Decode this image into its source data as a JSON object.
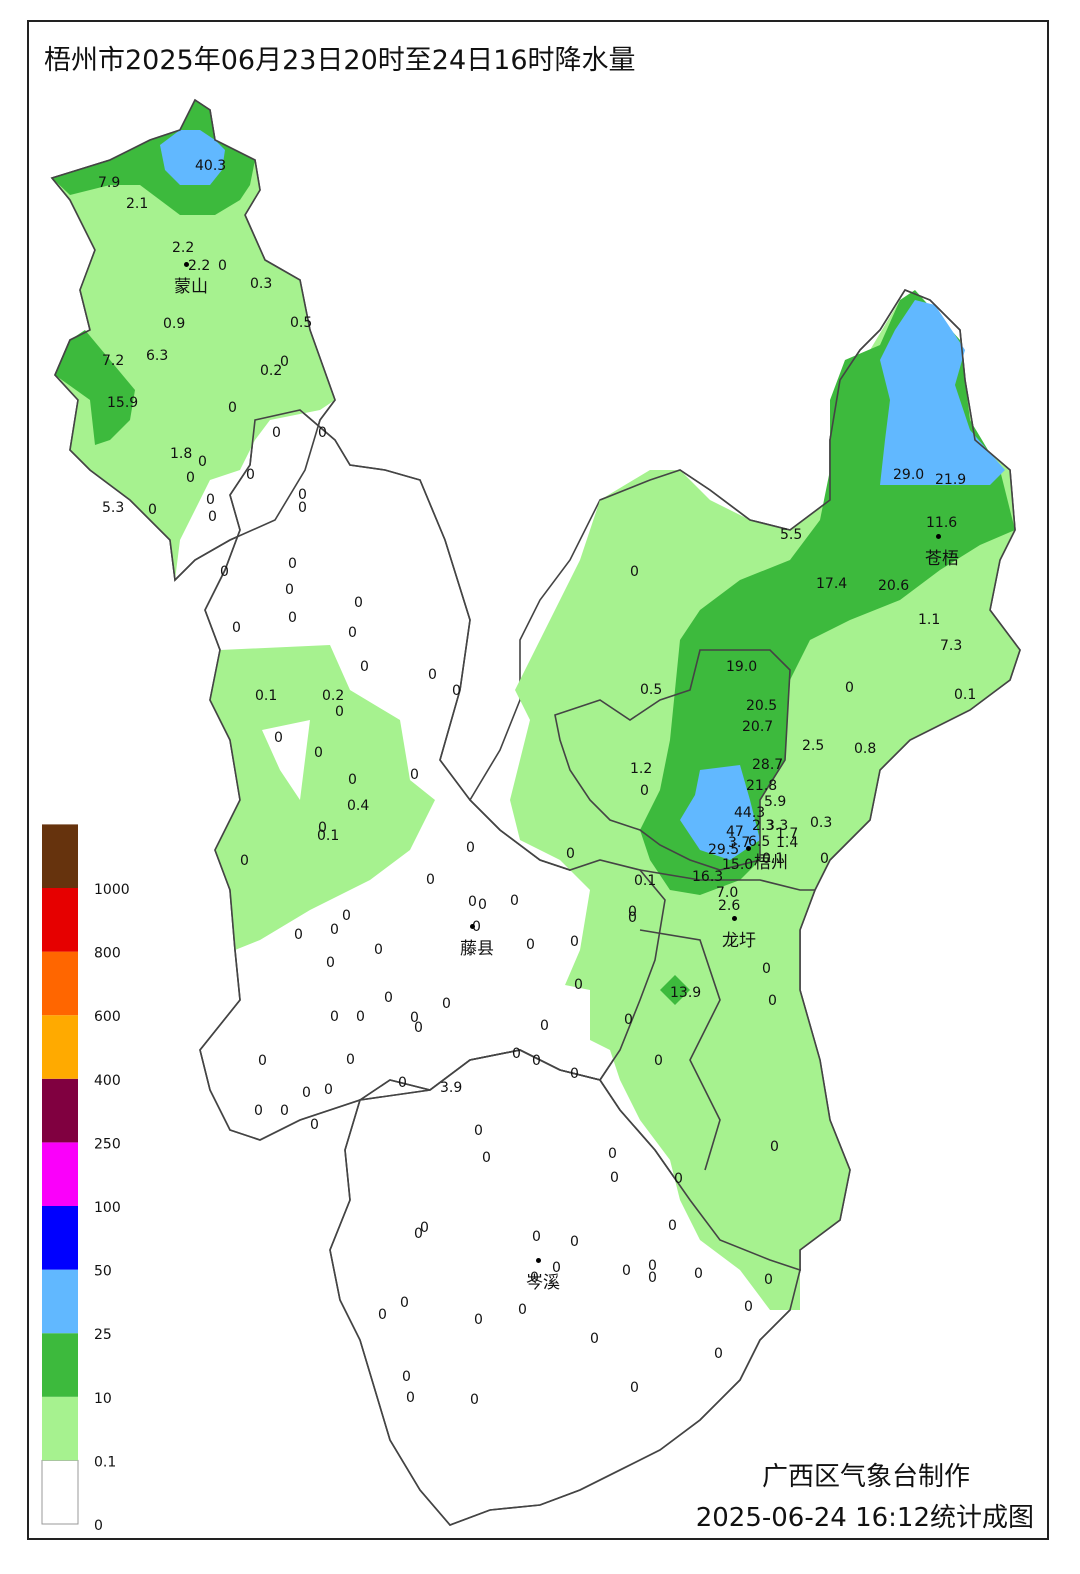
{
  "title": "梧州市2025年06月23日20时至24日16时降水量",
  "credit": {
    "line1": "广西区气象台制作",
    "line2": "2025-06-24 16:12统计成图"
  },
  "legend": {
    "bins": [
      {
        "label": "0",
        "color": "#ffffff"
      },
      {
        "label": "0.1",
        "color": "#a6f28f"
      },
      {
        "label": "10",
        "color": "#3dba3d"
      },
      {
        "label": "25",
        "color": "#61b8ff"
      },
      {
        "label": "50",
        "color": "#0000ff"
      },
      {
        "label": "100",
        "color": "#fa00fa"
      },
      {
        "label": "250",
        "color": "#800040"
      },
      {
        "label": "400",
        "color": "#ffaa00"
      },
      {
        "label": "600",
        "color": "#ff6600"
      },
      {
        "label": "800",
        "color": "#e60000"
      },
      {
        "label": "1000",
        "color": "#66330d"
      }
    ]
  },
  "cities": [
    {
      "name": "蒙山"
    },
    {
      "name": "苍梧"
    },
    {
      "name": "梧州"
    },
    {
      "name": "藤县"
    },
    {
      "name": "龙圩"
    },
    {
      "name": "岑溪"
    }
  ],
  "stations": [
    "40.3",
    "7.9",
    "2.1",
    "2.2",
    "2.2",
    "0",
    "0.3",
    "0.9",
    "0.5",
    "7.2",
    "6.3",
    "0.2",
    "0",
    "15.9",
    "0",
    "1.8",
    "0",
    "0",
    "5.3",
    "0",
    "0",
    "0",
    "0",
    "0",
    "0",
    "0",
    "0",
    "0",
    "0",
    "0",
    "0",
    "0",
    "0",
    "0",
    "0",
    "0",
    "0",
    "0.1",
    "0.2",
    "0",
    "0",
    "0",
    "0",
    "0",
    "0.4",
    "0",
    "0.1",
    "0",
    "5.5",
    "11.6",
    "29.0",
    "21.9",
    "0",
    "17.4",
    "20.6",
    "1.1",
    "7.3",
    "0",
    "0.1",
    "19.0",
    "0.5",
    "20.5",
    "20.7",
    "2.5",
    "0.8",
    "1.2",
    "0",
    "28.7",
    "21.8",
    "5.9",
    "44.3",
    "0.3",
    "2.3",
    "3.3",
    "47",
    "1.7",
    "6.5",
    "1.4",
    "3.7",
    "0.1",
    "29.5",
    "15.0",
    "16.3",
    "0.1",
    "7.0",
    "2.6",
    "0",
    "0",
    "0",
    "0",
    "0",
    "0",
    "0",
    "0",
    "0",
    "0",
    "0",
    "0",
    "0",
    "0",
    "0",
    "13.9",
    "0",
    "0",
    "0",
    "0",
    "0",
    "0",
    "0",
    "0",
    "0",
    "0",
    "0",
    "0",
    "0",
    "0",
    "0",
    "0",
    "0",
    "0",
    "0",
    "0",
    "0",
    "3.9",
    "0",
    "0",
    "0",
    "0",
    "0",
    "0",
    "0",
    "0",
    "0",
    "0",
    "0",
    "0",
    "0",
    "0",
    "0",
    "0",
    "0",
    "0",
    "0",
    "0",
    "0",
    "0",
    "0",
    "0",
    "0",
    "0",
    "0",
    "0",
    "0",
    "0",
    "0",
    "0",
    "0"
  ]
}
